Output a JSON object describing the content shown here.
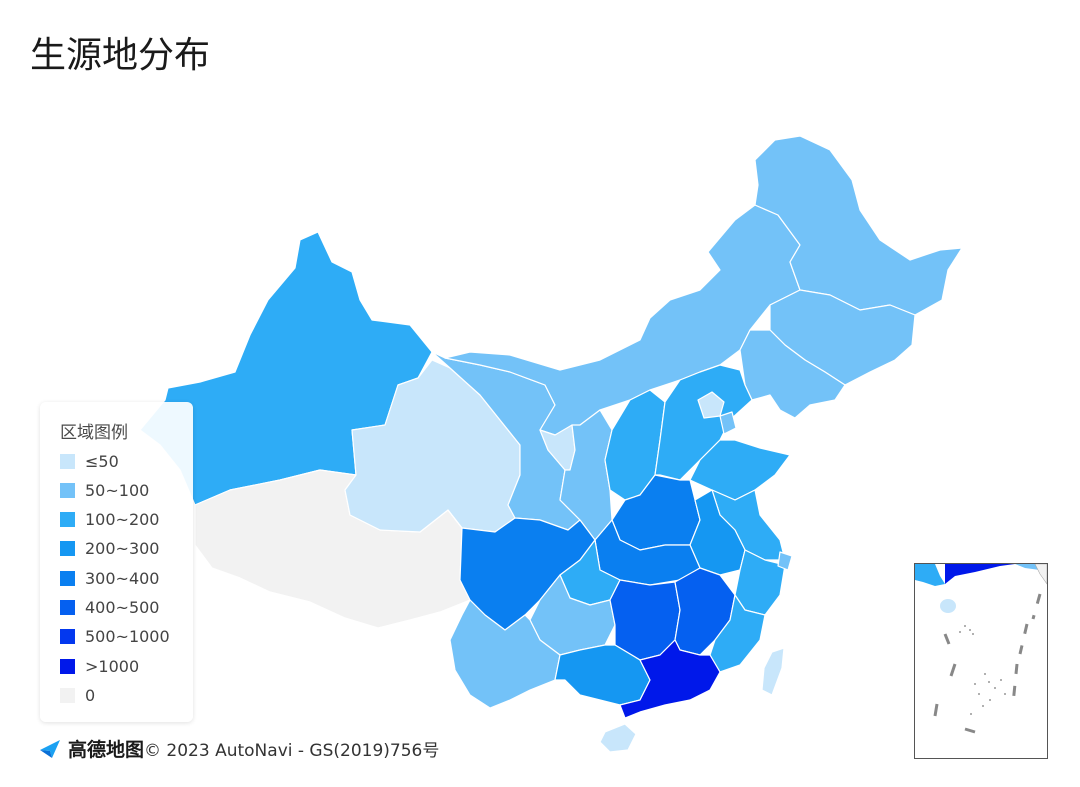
{
  "title": "生源地分布",
  "legend": {
    "title": "区域图例",
    "items": [
      {
        "label": "≤50",
        "color": "#c8e6fb"
      },
      {
        "label": "50~100",
        "color": "#73c2f8"
      },
      {
        "label": "100~200",
        "color": "#2eacf6"
      },
      {
        "label": "200~300",
        "color": "#1597f2"
      },
      {
        "label": "300~400",
        "color": "#0a7ff0"
      },
      {
        "label": "400~500",
        "color": "#0560f0"
      },
      {
        "label": "500~1000",
        "color": "#0338ef"
      },
      {
        "label": ">1000",
        "color": "#0018ea"
      },
      {
        "label": "0",
        "color": "#f2f2f2"
      }
    ]
  },
  "footer": {
    "logo_text": "高德地图",
    "copyright": "© 2023 AutoNavi - GS(2019)756号",
    "logo_icon": "navigation-arrow-icon"
  },
  "regions": [
    {
      "id": "xinjiang",
      "level": 2
    },
    {
      "id": "xizang",
      "level": 8
    },
    {
      "id": "qinghai",
      "level": 0
    },
    {
      "id": "gansu",
      "level": 1
    },
    {
      "id": "neimenggu",
      "level": 1
    },
    {
      "id": "heilongjiang",
      "level": 1
    },
    {
      "id": "jilin",
      "level": 1
    },
    {
      "id": "liaoning",
      "level": 1
    },
    {
      "id": "ningxia",
      "level": 0
    },
    {
      "id": "shaanxi",
      "level": 1
    },
    {
      "id": "shanxi",
      "level": 2
    },
    {
      "id": "hebei",
      "level": 2
    },
    {
      "id": "beijing",
      "level": 0
    },
    {
      "id": "tianjin",
      "level": 1
    },
    {
      "id": "shandong",
      "level": 2
    },
    {
      "id": "henan",
      "level": 4
    },
    {
      "id": "jiangsu",
      "level": 2
    },
    {
      "id": "anhui",
      "level": 3
    },
    {
      "id": "hubei",
      "level": 4
    },
    {
      "id": "sichuan",
      "level": 4
    },
    {
      "id": "chongqing",
      "level": 2
    },
    {
      "id": "guizhou",
      "level": 1
    },
    {
      "id": "yunnan",
      "level": 1
    },
    {
      "id": "hunan",
      "level": 5
    },
    {
      "id": "jiangxi",
      "level": 5
    },
    {
      "id": "zhejiang",
      "level": 2
    },
    {
      "id": "shanghai",
      "level": 1
    },
    {
      "id": "fujian",
      "level": 2
    },
    {
      "id": "guangxi",
      "level": 3
    },
    {
      "id": "guangdong",
      "level": 7
    },
    {
      "id": "hainan",
      "level": 0
    },
    {
      "id": "taiwan",
      "level": 0
    }
  ]
}
